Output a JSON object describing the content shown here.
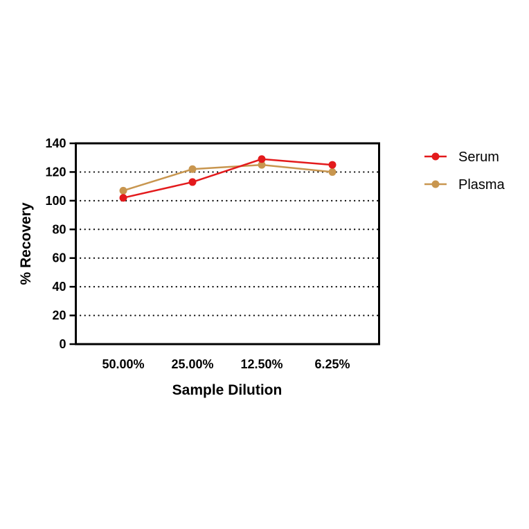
{
  "chart_data": {
    "type": "line",
    "categories": [
      "50.00%",
      "25.00%",
      "12.50%",
      "6.25%"
    ],
    "series": [
      {
        "name": "Serum",
        "values": [
          102,
          113,
          129,
          125
        ],
        "color": "#e31a1c"
      },
      {
        "name": "Plasma",
        "values": [
          107,
          122,
          125,
          120
        ],
        "color": "#c8964f"
      }
    ],
    "xlabel": "Sample Dilution",
    "ylabel": "% Recovery",
    "ylim": [
      0,
      140
    ],
    "yticks": [
      0,
      20,
      40,
      60,
      80,
      100,
      120,
      140
    ],
    "grid": "horizontal dotted",
    "legend": "right"
  }
}
